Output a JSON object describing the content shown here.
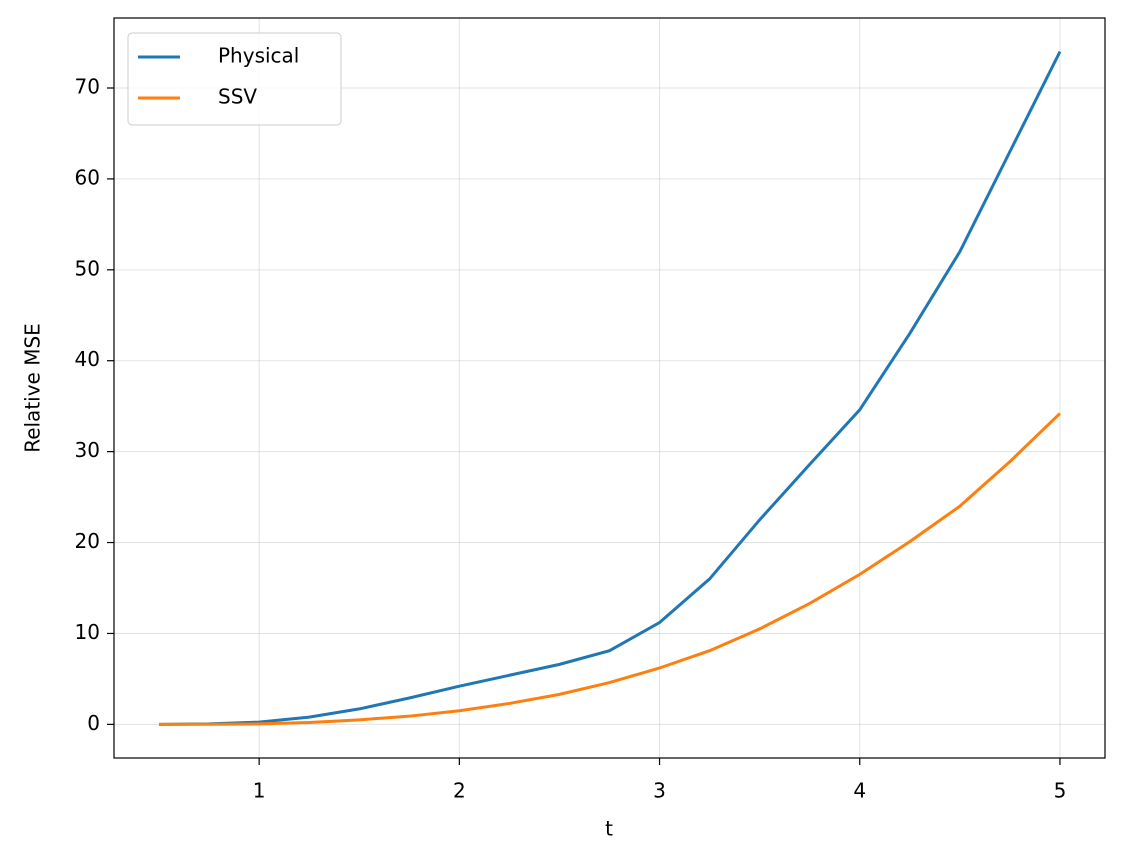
{
  "chart_data": {
    "type": "line",
    "xlabel": "t",
    "ylabel": "Relative MSE",
    "x": [
      0.5,
      0.75,
      1,
      1.25,
      1.5,
      1.75,
      2,
      2.25,
      2.5,
      2.75,
      3,
      3.25,
      3.5,
      3.75,
      4,
      4.25,
      4.5,
      4.75,
      5
    ],
    "series": [
      {
        "name": "Physical",
        "color": "#1f77b4",
        "values": [
          0,
          0.05,
          0.25,
          0.8,
          1.7,
          2.9,
          4.2,
          5.4,
          6.6,
          8.1,
          11.2,
          16,
          22.5,
          28.6,
          34.6,
          43,
          52,
          63,
          74
        ]
      },
      {
        "name": "SSV",
        "color": "#ff7f0e",
        "values": [
          0,
          0.01,
          0.05,
          0.2,
          0.5,
          0.9,
          1.5,
          2.3,
          3.3,
          4.6,
          6.2,
          8.1,
          10.5,
          13.3,
          16.5,
          20.1,
          24.0,
          28.9,
          34.2
        ]
      }
    ],
    "xlim": [
      0.275,
      5.225
    ],
    "xticks": [
      1,
      2,
      3,
      4,
      5
    ],
    "ylim": [
      -3.7,
      77.7
    ],
    "yticks": [
      0,
      10,
      20,
      30,
      40,
      50,
      60,
      70
    ],
    "grid": true,
    "legend": "upper-left"
  }
}
